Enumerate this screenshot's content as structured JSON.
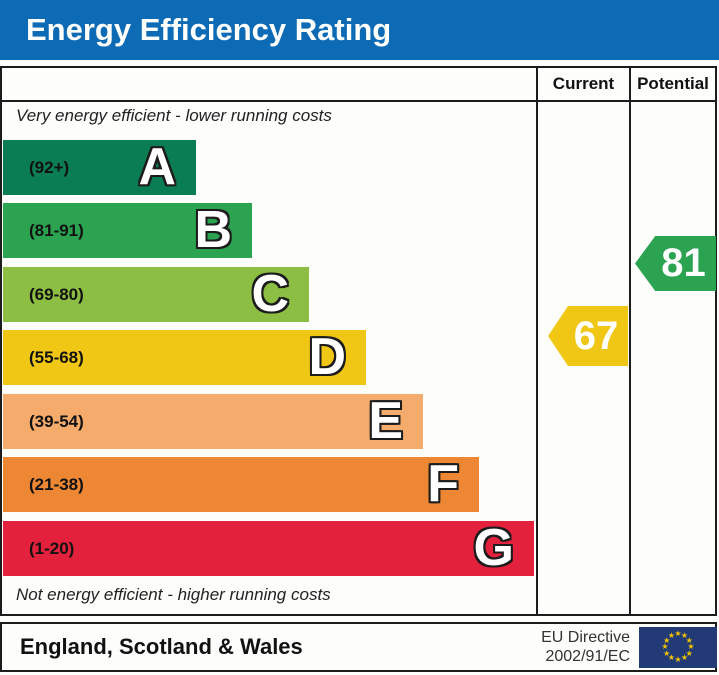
{
  "title": "Energy Efficiency Rating",
  "columns": {
    "current_label": "Current",
    "potential_label": "Potential"
  },
  "notes": {
    "top": "Very energy efficient - lower running costs",
    "bottom": "Not energy efficient - higher running costs"
  },
  "footer": {
    "region": "England, Scotland & Wales",
    "directive_line1": "EU Directive",
    "directive_line2": "2002/91/EC"
  },
  "colors": {
    "title_bar": "#0d6bb5",
    "border": "#1c1c1c",
    "eu_flag_bg": "#223a75",
    "eu_flag_star": "#f2c500"
  },
  "chart_data": {
    "type": "bar",
    "title": "Energy Efficiency Rating",
    "categories": [
      "A",
      "B",
      "C",
      "D",
      "E",
      "F",
      "G"
    ],
    "bands": [
      {
        "letter": "A",
        "range": "(92+)",
        "min": 92,
        "max": 100,
        "color": "#0b7d52"
      },
      {
        "letter": "B",
        "range": "(81-91)",
        "min": 81,
        "max": 91,
        "color": "#2ba351"
      },
      {
        "letter": "C",
        "range": "(69-80)",
        "min": 69,
        "max": 80,
        "color": "#8cbe43"
      },
      {
        "letter": "D",
        "range": "(55-68)",
        "min": 55,
        "max": 68,
        "color": "#f1c716"
      },
      {
        "letter": "E",
        "range": "(39-54)",
        "min": 39,
        "max": 54,
        "color": "#f5ab6b"
      },
      {
        "letter": "F",
        "range": "(21-38)",
        "min": 21,
        "max": 38,
        "color": "#ee8733"
      },
      {
        "letter": "G",
        "range": "(1-20)",
        "min": 1,
        "max": 20,
        "color": "#e4213c"
      }
    ],
    "current": {
      "value": 67,
      "band": "D",
      "color": "#f1c716"
    },
    "potential": {
      "value": 81,
      "band": "B",
      "color": "#2ba351"
    }
  }
}
